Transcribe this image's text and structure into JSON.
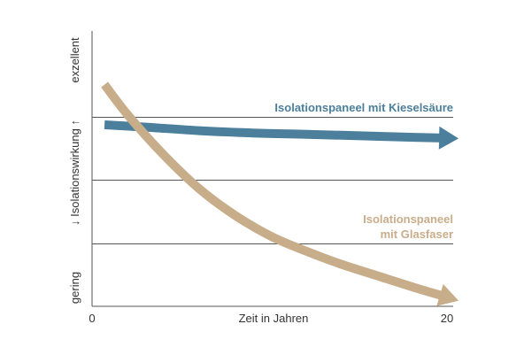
{
  "chart_data": {
    "type": "line",
    "title": "",
    "xlabel": "Zeit in Jahren",
    "ylabel": "Isolationswirkung",
    "y_high_label": "exzellent",
    "y_low_label": "gering",
    "arrow_up": "↑",
    "arrow_down": "↓",
    "x_tick_labels": [
      "0",
      "20"
    ],
    "xlim": [
      0,
      20
    ],
    "ylim": [
      0,
      100
    ],
    "grid_values": [
      33.3,
      66.7,
      100
    ],
    "grid": true,
    "colors": {
      "axis": "#555555",
      "grid": "#555555",
      "text": "#333333"
    },
    "series": [
      {
        "name": "Isolationspaneel mit Kieselsäure",
        "label_lines": [
          "Isolationspaneel mit Kieselsäure"
        ],
        "color": "#4b7f9b",
        "x": [
          0.7,
          3,
          6,
          9,
          12,
          15,
          18,
          20.5
        ],
        "y": [
          95.8,
          94.6,
          92.7,
          91.5,
          90.8,
          90.0,
          89.2,
          88.6
        ]
      },
      {
        "name": "Isolationspaneel mit Glasfaser",
        "label_lines": [
          "Isolationspaneel",
          "mit Glasfaser"
        ],
        "color": "#c8ad8a",
        "x": [
          0.7,
          2,
          4,
          6,
          8,
          10,
          12,
          14,
          16,
          18,
          20.5
        ],
        "y": [
          117,
          101,
          80,
          62,
          48,
          37,
          29,
          22,
          16,
          10,
          3
        ]
      }
    ]
  }
}
